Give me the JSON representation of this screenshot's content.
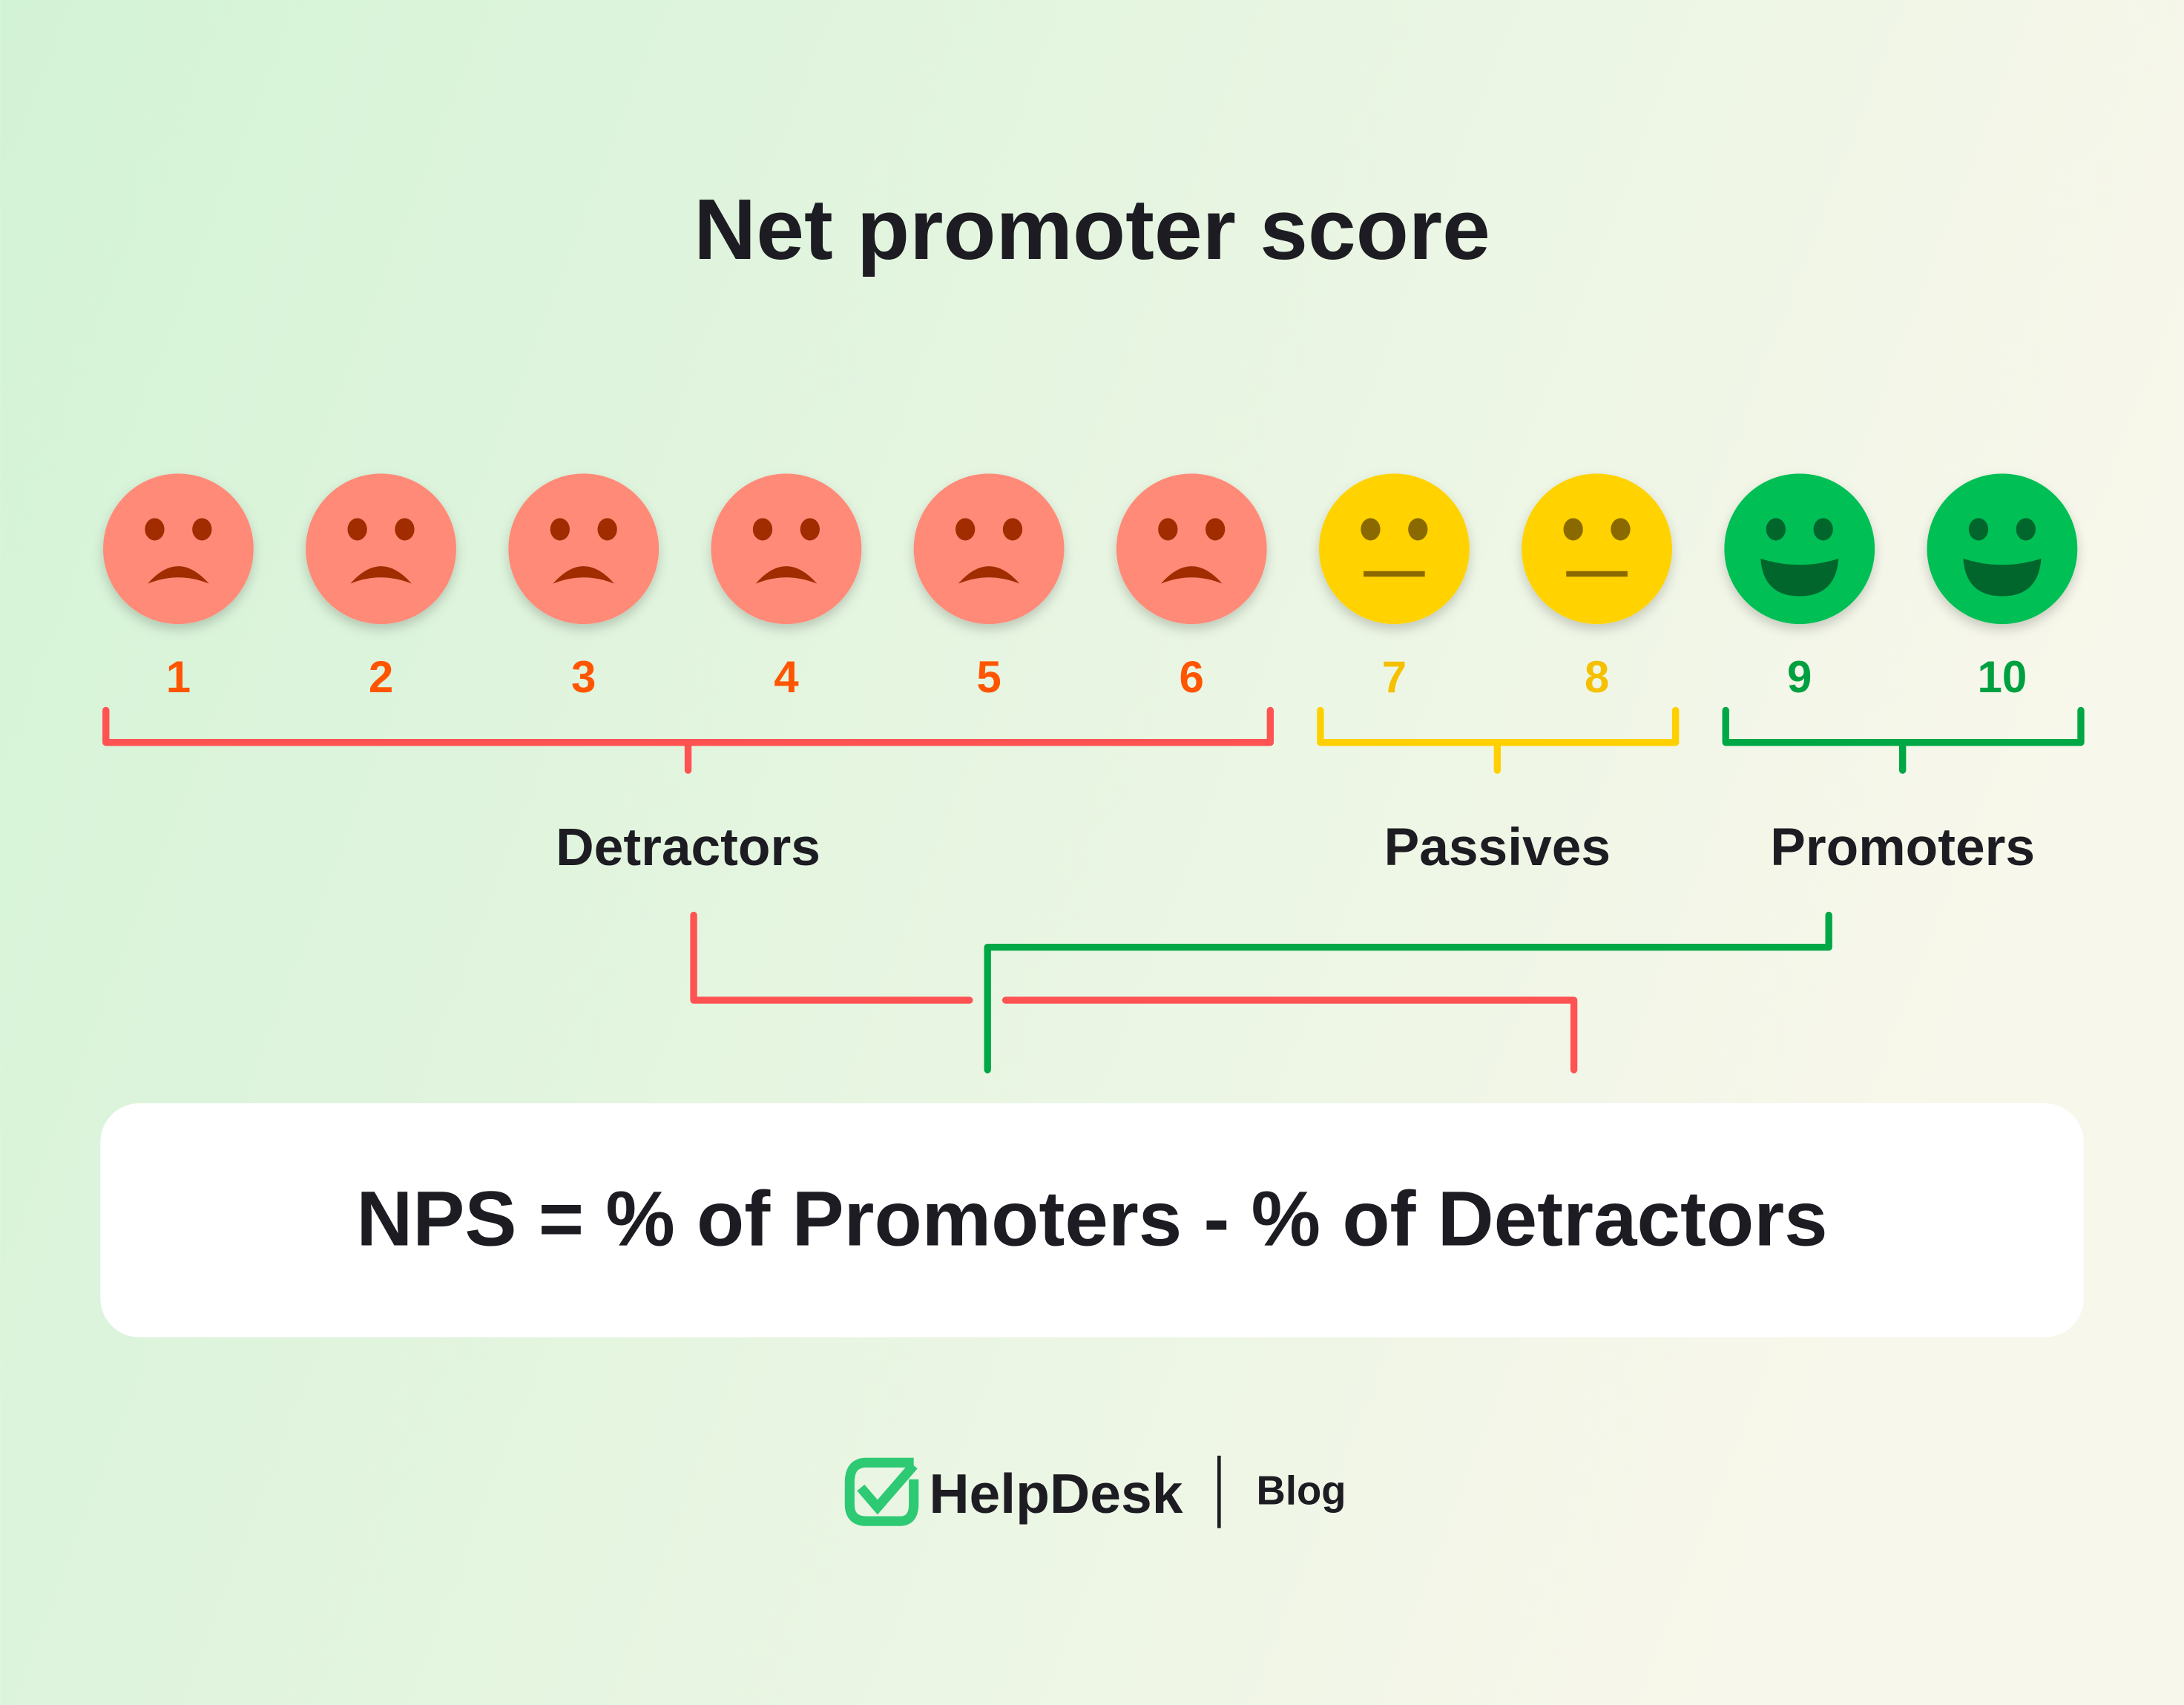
{
  "title": "Net promoter score",
  "scale": [
    {
      "value": "1",
      "mood": "sad",
      "group": "detractor"
    },
    {
      "value": "2",
      "mood": "sad",
      "group": "detractor"
    },
    {
      "value": "3",
      "mood": "sad",
      "group": "detractor"
    },
    {
      "value": "4",
      "mood": "sad",
      "group": "detractor"
    },
    {
      "value": "5",
      "mood": "sad",
      "group": "detractor"
    },
    {
      "value": "6",
      "mood": "sad",
      "group": "detractor"
    },
    {
      "value": "7",
      "mood": "neutral",
      "group": "passive"
    },
    {
      "value": "8",
      "mood": "neutral",
      "group": "passive"
    },
    {
      "value": "9",
      "mood": "happy",
      "group": "promoter"
    },
    {
      "value": "10",
      "mood": "happy",
      "group": "promoter"
    }
  ],
  "groups": {
    "detractors": "Detractors",
    "passives": "Passives",
    "promoters": "Promoters"
  },
  "formula": "NPS = % of Promoters - % of Detractors",
  "logo": {
    "brand": "HelpDesk",
    "section": "Blog"
  },
  "colors": {
    "detractor_face": "#FF8A78",
    "detractor_feature": "#A02C00",
    "detractor_number": "#FF5500",
    "detractor_line": "#FF5252",
    "passive_face": "#FFD200",
    "passive_feature": "#8A6A00",
    "passive_number": "#F5C000",
    "passive_line": "#FFD000",
    "promoter_face": "#00BF55",
    "promoter_feature": "#00662C",
    "promoter_number": "#00A040",
    "promoter_line": "#00A845",
    "logo_green": "#2EC973",
    "text": "#1C1C22"
  }
}
